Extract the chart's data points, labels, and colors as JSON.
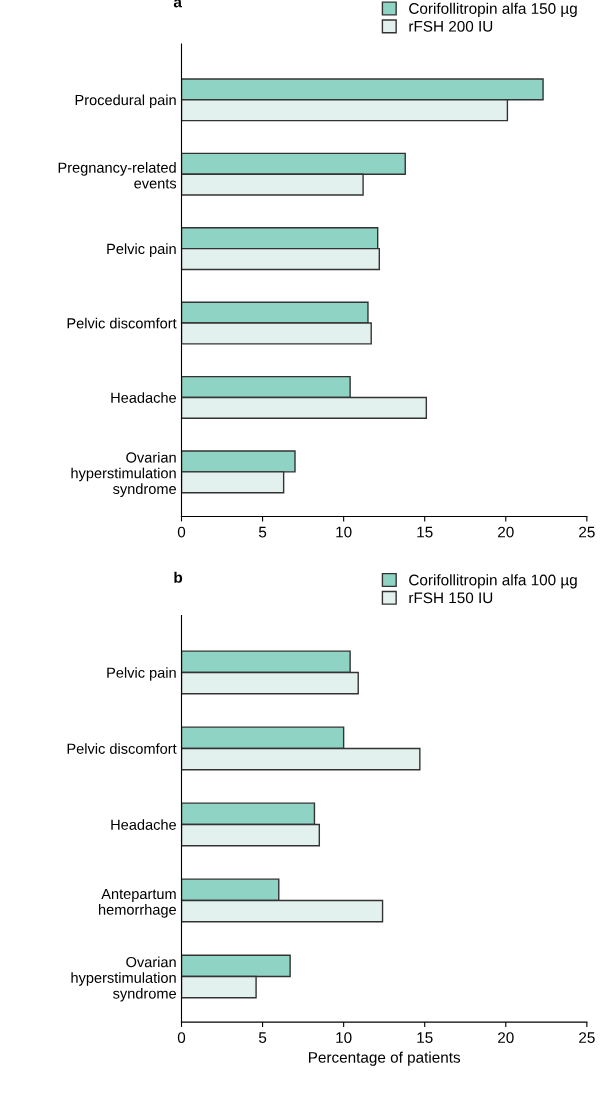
{
  "chart_data": [
    {
      "type": "bar",
      "orientation": "horizontal",
      "title": "a",
      "categories": [
        "Procedural pain",
        "Pregnancy-related\nevents",
        "Pelvic pain",
        "Pelvic discomfort",
        "Headache",
        "Ovarian\nhyperstimulation\nsyndrome"
      ],
      "series": [
        {
          "name": "Corifollitropin alfa 150 µg",
          "color": "#8ed3c4",
          "values": [
            22.3,
            13.8,
            12.1,
            11.5,
            10.4,
            7.0
          ]
        },
        {
          "name": "rFSH 200 IU",
          "color": "#e3f1ee",
          "values": [
            20.1,
            11.2,
            12.2,
            11.7,
            15.1,
            6.3
          ]
        }
      ],
      "xlim": [
        0,
        25
      ],
      "xticks": [
        0,
        5,
        10,
        15,
        20,
        25
      ],
      "legend": "top right",
      "grid": false
    },
    {
      "type": "bar",
      "orientation": "horizontal",
      "title": "b",
      "xlabel": "Percentage of patients",
      "categories": [
        "Pelvic pain",
        "Pelvic discomfort",
        "Headache",
        "Antepartum\nhemorrhage",
        "Ovarian\nhyperstimulation\nsyndrome"
      ],
      "series": [
        {
          "name": "Corifollitropin alfa 100 µg",
          "color": "#8ed3c4",
          "values": [
            10.4,
            10.0,
            8.2,
            6.0,
            6.7
          ]
        },
        {
          "name": "rFSH 150 IU",
          "color": "#e3f1ee",
          "values": [
            10.9,
            14.7,
            8.5,
            12.4,
            4.6
          ]
        }
      ],
      "xlim": [
        0,
        25
      ],
      "xticks": [
        0,
        5,
        10,
        15,
        20,
        25
      ],
      "legend": "top right",
      "grid": false
    }
  ]
}
